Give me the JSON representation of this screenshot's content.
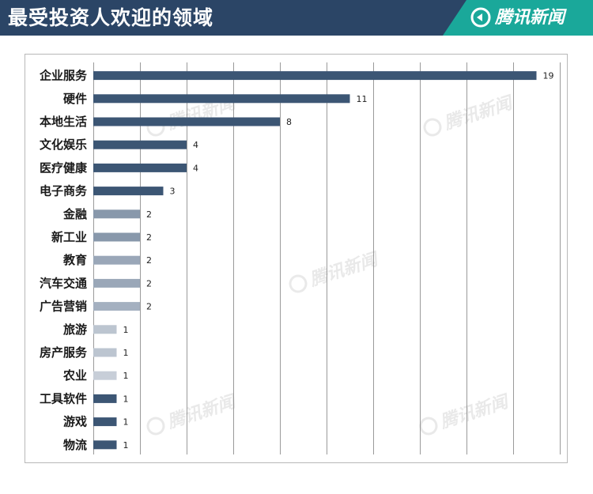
{
  "header": {
    "title": "最受投资人欢迎的领域",
    "brand": "腾讯新闻",
    "brand_color": "#1aa89a",
    "background_color": "#2b4566"
  },
  "watermark": {
    "text": "腾讯新闻",
    "icon": "tencent-news-logo-icon"
  },
  "chart_data": {
    "type": "bar",
    "orientation": "horizontal",
    "title": "最受投资人欢迎的领域",
    "categories": [
      "企业服务",
      "硬件",
      "本地生活",
      "文化娱乐",
      "医疗健康",
      "电子商务",
      "金融",
      "新工业",
      "教育",
      "汽车交通",
      "广告营销",
      "旅游",
      "房产服务",
      "农业",
      "工具软件",
      "游戏",
      "物流"
    ],
    "values": [
      19,
      11,
      8,
      4,
      4,
      3,
      2,
      2,
      2,
      2,
      2,
      1,
      1,
      1,
      1,
      1,
      1
    ],
    "colors": [
      "#3c5674",
      "#3c5674",
      "#3c5674",
      "#3c5674",
      "#3c5674",
      "#3c5674",
      "#8898ab",
      "#8898ab",
      "#9aa7b8",
      "#9aa7b8",
      "#a4b0c0",
      "#bcc5d0",
      "#bcc5d0",
      "#c7ced8",
      "#3c5674",
      "#3c5674",
      "#3c5674"
    ],
    "xlim": [
      0,
      20
    ],
    "grid_step": 2,
    "grid": true,
    "legend": "none",
    "data_labels": true
  }
}
